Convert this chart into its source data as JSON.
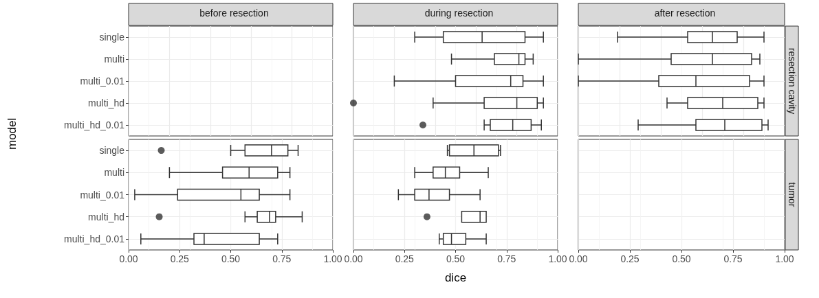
{
  "chart_data": [
    {
      "type": "box",
      "title": "before resection",
      "ylabel": "model",
      "orientation": "horizontal",
      "categories": [
        "single",
        "multi",
        "multi_0.01",
        "multi_hd",
        "multi_hd_0.01"
      ],
      "xlim": [
        0,
        1
      ],
      "grid": true,
      "tick_labels": "y",
      "series": [
        {
          "color": "#333333",
          "boxes": [
            null,
            null,
            null,
            null,
            null
          ]
        }
      ]
    },
    {
      "type": "box",
      "title": "during resection",
      "orientation": "horizontal",
      "categories": [
        null,
        null,
        null,
        null,
        null
      ],
      "xlim": [
        0,
        1
      ],
      "grid": true,
      "tick_labels": false,
      "series": [
        {
          "color": "#333333",
          "boxes": [
            {
              "low": 0.3,
              "q1": 0.44,
              "median": 0.63,
              "q3": 0.84,
              "high": 0.93
            },
            {
              "low": 0.48,
              "q1": 0.69,
              "median": 0.81,
              "q3": 0.84,
              "high": 0.88
            },
            {
              "low": 0.2,
              "q1": 0.5,
              "median": 0.77,
              "q3": 0.83,
              "high": 0.93
            },
            {
              "low": 0.39,
              "q1": 0.64,
              "median": 0.8,
              "q3": 0.9,
              "high": 0.93,
              "outliers": [
                0
              ]
            },
            {
              "low": 0.64,
              "q1": 0.67,
              "median": 0.78,
              "q3": 0.87,
              "high": 0.92,
              "outliers": [
                0.34
              ]
            }
          ]
        }
      ]
    },
    {
      "type": "box",
      "title": "after resection",
      "orientation": "horizontal",
      "categories": [
        null,
        null,
        null,
        null,
        null
      ],
      "xlim": [
        0,
        1
      ],
      "grid": true,
      "tick_labels": false,
      "annotations": [
        "resection cavity"
      ],
      "series": [
        {
          "color": "#333333",
          "boxes": [
            {
              "low": 0.19,
              "q1": 0.53,
              "median": 0.65,
              "q3": 0.77,
              "high": 0.9
            },
            {
              "low": 0,
              "q1": 0.45,
              "median": 0.65,
              "q3": 0.84,
              "high": 0.88
            },
            {
              "low": 0,
              "q1": 0.39,
              "median": 0.57,
              "q3": 0.83,
              "high": 0.9
            },
            {
              "low": 0.43,
              "q1": 0.53,
              "median": 0.7,
              "q3": 0.87,
              "high": 0.9
            },
            {
              "low": 0.29,
              "q1": 0.57,
              "median": 0.71,
              "q3": 0.89,
              "high": 0.92
            }
          ]
        }
      ]
    },
    {
      "type": "box",
      "orientation": "horizontal",
      "categories": [
        "single",
        "multi",
        "multi_0.01",
        "multi_hd",
        "multi_hd_0.01"
      ],
      "xlim": [
        0,
        1
      ],
      "xticks": [
        {
          "value": 0,
          "label": "0.00"
        },
        {
          "value": 0.25,
          "label": "0.25"
        },
        {
          "value": 0.5,
          "label": "0.50"
        },
        {
          "value": 0.75,
          "label": "0.75"
        },
        {
          "value": 1,
          "label": "1.00"
        }
      ],
      "grid": true,
      "series": [
        {
          "color": "#333333",
          "boxes": [
            {
              "low": 0.5,
              "q1": 0.57,
              "median": 0.7,
              "q3": 0.78,
              "high": 0.83,
              "outliers": [
                0.16
              ]
            },
            {
              "low": 0.2,
              "q1": 0.46,
              "median": 0.59,
              "q3": 0.73,
              "high": 0.79
            },
            {
              "low": 0.03,
              "q1": 0.24,
              "median": 0.55,
              "q3": 0.64,
              "high": 0.79
            },
            {
              "low": 0.57,
              "q1": 0.63,
              "median": 0.69,
              "q3": 0.72,
              "high": 0.85,
              "outliers": [
                0.15
              ]
            },
            {
              "low": 0.06,
              "q1": 0.32,
              "median": 0.37,
              "q3": 0.64,
              "high": 0.73
            }
          ]
        }
      ]
    },
    {
      "type": "box",
      "xlabel": "dice",
      "orientation": "horizontal",
      "categories": [
        null,
        null,
        null,
        null,
        null
      ],
      "xlim": [
        0,
        1
      ],
      "xticks": [
        {
          "value": 0,
          "label": "0.00"
        },
        {
          "value": 0.25,
          "label": "0.25"
        },
        {
          "value": 0.5,
          "label": "0.50"
        },
        {
          "value": 0.75,
          "label": "0.75"
        },
        {
          "value": 1,
          "label": "1.00"
        }
      ],
      "grid": true,
      "tick_labels": "x",
      "series": [
        {
          "color": "#333333",
          "boxes": [
            {
              "low": 0.46,
              "q1": 0.47,
              "median": 0.59,
              "q3": 0.71,
              "high": 0.72
            },
            {
              "low": 0.3,
              "q1": 0.39,
              "median": 0.45,
              "q3": 0.52,
              "high": 0.66
            },
            {
              "low": 0.22,
              "q1": 0.3,
              "median": 0.37,
              "q3": 0.47,
              "high": 0.62
            },
            {
              "low": 0.53,
              "q1": 0.53,
              "median": 0.62,
              "q3": 0.65,
              "high": 0.65,
              "outliers": [
                0.36
              ]
            },
            {
              "low": 0.42,
              "q1": 0.44,
              "median": 0.48,
              "q3": 0.55,
              "high": 0.65
            }
          ]
        }
      ]
    },
    {
      "type": "box",
      "orientation": "horizontal",
      "categories": [
        null,
        null,
        null,
        null,
        null
      ],
      "xlim": [
        0,
        1
      ],
      "xticks": [
        {
          "value": 0,
          "label": "0.00"
        },
        {
          "value": 0.25,
          "label": "0.25"
        },
        {
          "value": 0.5,
          "label": "0.50"
        },
        {
          "value": 0.75,
          "label": "0.75"
        },
        {
          "value": 1,
          "label": "1.00"
        }
      ],
      "grid": true,
      "tick_labels": "x",
      "annotations": [
        "tumor"
      ],
      "series": [
        {
          "color": "#333333",
          "boxes": [
            null,
            null,
            null,
            null,
            null
          ]
        }
      ]
    }
  ]
}
